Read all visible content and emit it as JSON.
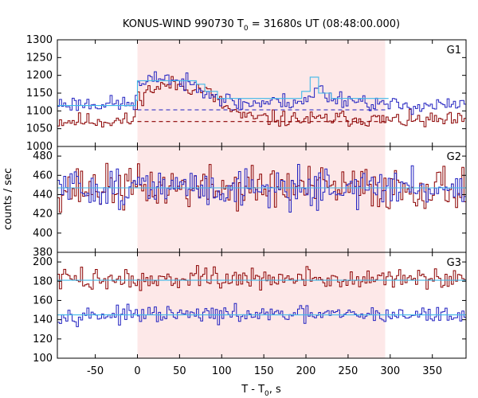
{
  "chart_data": {
    "type": "line",
    "title_main": "KONUS-WIND 990730 T",
    "title_sub": "0",
    "title_rest": " = 31680s UT (08:48:00.000)",
    "xlabel_main": "T - T",
    "xlabel_sub": "0",
    "xlabel_rest": ", s",
    "ylabel": "counts / sec",
    "xlim": [
      -95,
      390
    ],
    "xticks": [
      -50,
      0,
      50,
      100,
      150,
      200,
      250,
      300,
      350
    ],
    "shade": {
      "x0": 0,
      "x1": 294,
      "color": "#fde8e8"
    },
    "bin_width": 2.5,
    "colors": {
      "dark_red": "#8b0000",
      "blue": "#2020c0",
      "light_blue": "#40b8e8"
    },
    "panels": [
      {
        "label": "G1",
        "ylim": [
          1000,
          1300
        ],
        "yticks": [
          1000,
          1050,
          1100,
          1150,
          1200,
          1250,
          1300
        ],
        "series": [
          {
            "color": "dark_red",
            "base": [
              [
                -95,
                1072
              ],
              [
                -3,
                1072
              ],
              [
                0,
                1135
              ],
              [
                15,
                1160
              ],
              [
                40,
                1175
              ],
              [
                80,
                1160
              ],
              [
                105,
                1110
              ],
              [
                130,
                1080
              ],
              [
                215,
                1075
              ],
              [
                245,
                1080
              ],
              [
                300,
                1073
              ],
              [
                390,
                1072
              ]
            ],
            "noise": 16,
            "seed": 11
          },
          {
            "color": "blue",
            "base": [
              [
                -95,
                1120
              ],
              [
                -3,
                1120
              ],
              [
                0,
                1165
              ],
              [
                30,
                1200
              ],
              [
                50,
                1180
              ],
              [
                80,
                1165
              ],
              [
                95,
                1140
              ],
              [
                120,
                1120
              ],
              [
                205,
                1130
              ],
              [
                215,
                1170
              ],
              [
                225,
                1140
              ],
              [
                260,
                1130
              ],
              [
                300,
                1115
              ],
              [
                390,
                1115
              ]
            ],
            "noise": 16,
            "seed": 23
          }
        ],
        "steps": [
          {
            "color": "light_blue",
            "points": [
              [
                -95,
                1115
              ],
              [
                -2,
                1115
              ],
              [
                -2,
                1130
              ],
              [
                0,
                1130
              ],
              [
                0,
                1185
              ],
              [
                70,
                1185
              ],
              [
                70,
                1175
              ],
              [
                80,
                1175
              ],
              [
                80,
                1155
              ],
              [
                95,
                1155
              ],
              [
                95,
                1135
              ],
              [
                195,
                1135
              ],
              [
                195,
                1155
              ],
              [
                205,
                1155
              ],
              [
                205,
                1195
              ],
              [
                215,
                1195
              ],
              [
                215,
                1150
              ],
              [
                230,
                1150
              ],
              [
                230,
                1135
              ],
              [
                298,
                1135
              ]
            ]
          }
        ],
        "baselines": [
          {
            "color": "blue",
            "y": 1103,
            "x0": 0,
            "x1": 295
          },
          {
            "color": "dark_red",
            "y": 1070,
            "x0": 0,
            "x1": 295
          }
        ]
      },
      {
        "label": "G2",
        "ylim": [
          380,
          490
        ],
        "yticks": [
          380,
          400,
          420,
          440,
          460,
          480
        ],
        "series": [
          {
            "color": "dark_red",
            "base": [
              [
                -95,
                447
              ],
              [
                390,
                447
              ]
            ],
            "noise": 16,
            "seed": 37
          },
          {
            "color": "blue",
            "base": [
              [
                -95,
                447
              ],
              [
                390,
                447
              ]
            ],
            "noise": 14,
            "seed": 51
          }
        ],
        "steps": [
          {
            "color": "light_blue",
            "points": [
              [
                -95,
                447
              ],
              [
                390,
                447
              ]
            ]
          }
        ],
        "baselines": []
      },
      {
        "label": "G3",
        "ylim": [
          100,
          210
        ],
        "yticks": [
          100,
          120,
          140,
          160,
          180,
          200
        ],
        "series": [
          {
            "color": "dark_red",
            "base": [
              [
                -95,
                182
              ],
              [
                390,
                182
              ]
            ],
            "noise": 8,
            "seed": 73
          },
          {
            "color": "blue",
            "base": [
              [
                -95,
                145
              ],
              [
                390,
                145
              ]
            ],
            "noise": 6,
            "seed": 97
          }
        ],
        "steps": [
          {
            "color": "light_blue",
            "points": [
              [
                -95,
                181
              ],
              [
                390,
                181
              ]
            ]
          },
          {
            "color": "light_blue",
            "points": [
              [
                -95,
                145
              ],
              [
                390,
                145
              ]
            ]
          }
        ],
        "baselines": []
      }
    ]
  }
}
